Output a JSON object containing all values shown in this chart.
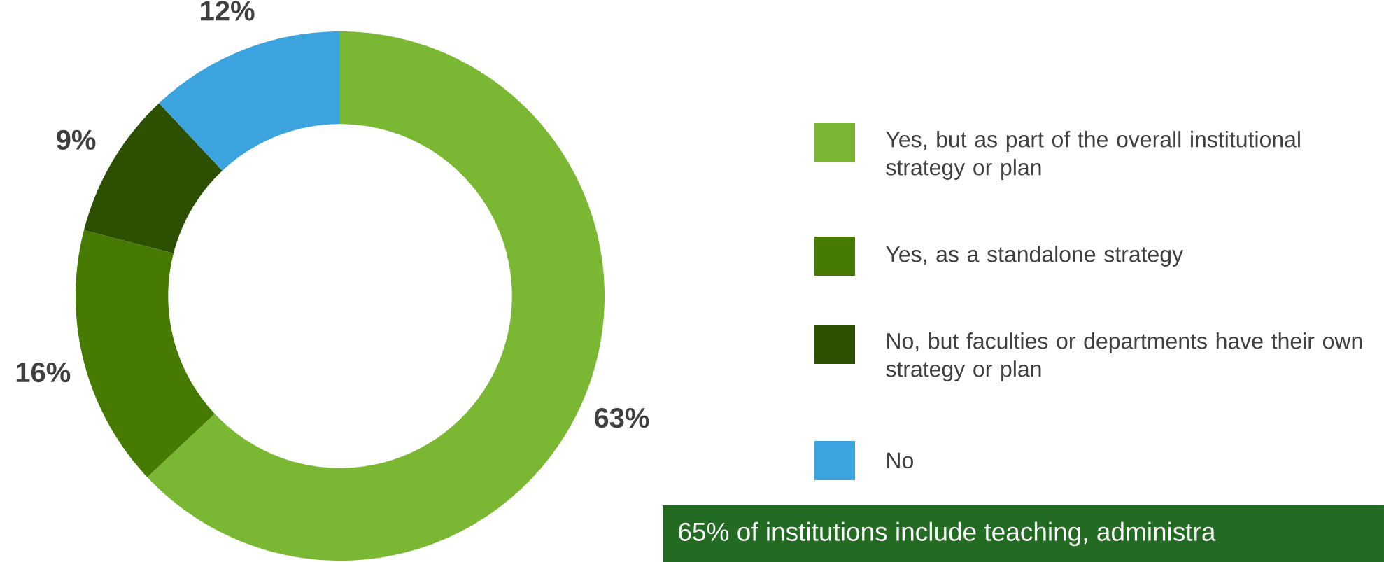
{
  "chart_data": {
    "type": "donut",
    "categories": [
      "Yes, but as part of the overall institutional strategy or plan",
      "Yes, as a standalone strategy",
      "No, but faculties or departments have their own strategy or plan",
      "No"
    ],
    "values": [
      63,
      16,
      9,
      12
    ],
    "colors": [
      "#7ab833",
      "#467a00",
      "#2c5000",
      "#3ba3de"
    ],
    "value_labels": [
      "63%",
      "16%",
      "9%",
      "12%"
    ],
    "legend": "right",
    "annotations": [
      "65% of institutions include teaching, administra"
    ]
  }
}
